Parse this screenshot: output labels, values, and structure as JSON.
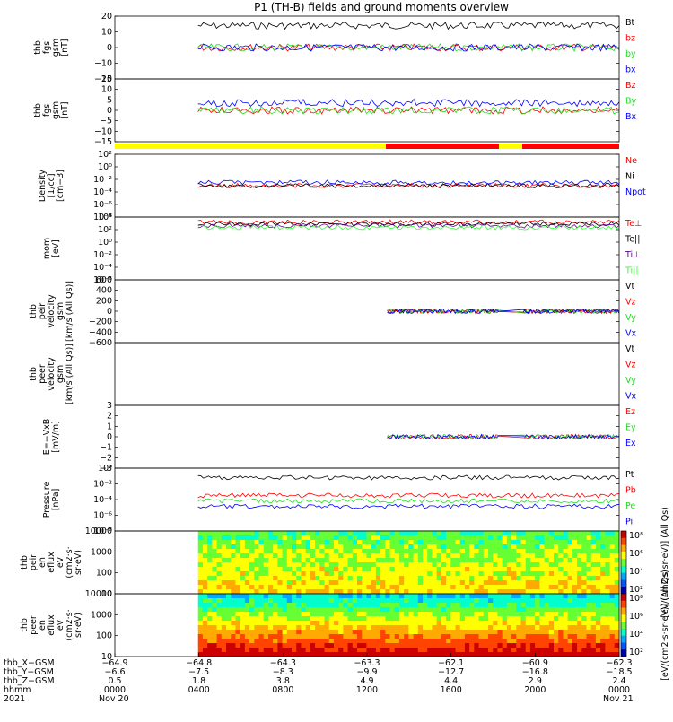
{
  "figure": {
    "title": "P1 (TH-B) fields and ground moments overview",
    "colors": {
      "black": "#000000",
      "red": "#ff0000",
      "green": "#22dd22",
      "blue": "#0000ff",
      "yellow": "#ffff00",
      "lightgreen": "#33ff33",
      "purple": "#660099"
    }
  },
  "chart_data": [
    {
      "id": "fgs-gsm",
      "type": "line",
      "ylabel": [
        "thb",
        "fgs",
        "gsm",
        "[nT]"
      ],
      "ylim": [
        -20,
        20
      ],
      "yticks": [
        "20",
        "10",
        "0",
        "−10",
        "−20"
      ],
      "legend": [
        {
          "label": "Bt",
          "color": "#000000"
        },
        {
          "label": "bz",
          "color": "#ff0000"
        },
        {
          "label": "by",
          "color": "#22dd22"
        },
        {
          "label": "bx",
          "color": "#0000ff"
        }
      ]
    },
    {
      "id": "fgs-dsl",
      "type": "line",
      "ylabel": [
        "thb",
        "fgs",
        "gsm",
        "[nT]"
      ],
      "ylim": [
        -15,
        15
      ],
      "yticks": [
        "15",
        "10",
        "5",
        "0",
        "−5",
        "−10",
        "−15"
      ],
      "legend": [
        {
          "label": "Bz",
          "color": "#ff0000"
        },
        {
          "label": "By",
          "color": "#22dd22"
        },
        {
          "label": "Bx",
          "color": "#0000ff"
        }
      ]
    },
    {
      "id": "density",
      "type": "line",
      "ylabel": [
        "Density",
        "[1/cc]",
        "[cm−3]"
      ],
      "scale": "log",
      "yticks": [
        "10²",
        "10⁰",
        "10⁻²",
        "10⁻⁴",
        "10⁻⁶",
        "10⁻⁸"
      ],
      "legend": [
        {
          "label": "Ne",
          "color": "#ff0000"
        },
        {
          "label": "Ni",
          "color": "#000000"
        },
        {
          "label": "Npot",
          "color": "#0000ff"
        }
      ]
    },
    {
      "id": "temperature",
      "type": "line",
      "ylabel": [
        "mom",
        "[eV]"
      ],
      "scale": "log",
      "yticks": [
        "10⁴",
        "10²",
        "10⁰",
        "10⁻²",
        "10⁻⁴",
        "10⁻⁶"
      ],
      "legend": [
        {
          "label": "Te⊥",
          "color": "#ff0000"
        },
        {
          "label": "Te||",
          "color": "#000000"
        },
        {
          "label": "Ti⊥",
          "color": "#660099"
        },
        {
          "label": "Ti||",
          "color": "#33ff33"
        }
      ]
    },
    {
      "id": "peir-velocity",
      "type": "line",
      "ylabel": [
        "thb",
        "peir",
        "velocity",
        "gsm",
        "[km/s (All Qs)]"
      ],
      "ylim": [
        -600,
        600
      ],
      "yticks": [
        "600",
        "400",
        "200",
        "0",
        "−200",
        "−400",
        "−600"
      ],
      "legend": [
        {
          "label": "Vt",
          "color": "#000000"
        },
        {
          "label": "Vz",
          "color": "#ff0000"
        },
        {
          "label": "Vy",
          "color": "#22dd22"
        },
        {
          "label": "Vx",
          "color": "#0000ff"
        }
      ]
    },
    {
      "id": "peer-velocity",
      "type": "line",
      "ylabel": [
        "thb",
        "peer",
        "velocity",
        "gsm",
        "[km/s (All Qs)]"
      ],
      "yticks": [],
      "legend": [
        {
          "label": "Vt",
          "color": "#000000"
        },
        {
          "label": "Vz",
          "color": "#ff0000"
        },
        {
          "label": "Vy",
          "color": "#22dd22"
        },
        {
          "label": "Vx",
          "color": "#0000ff"
        }
      ]
    },
    {
      "id": "efield",
      "type": "line",
      "ylabel": [
        "E=−VxB",
        "[mV/m]"
      ],
      "ylim": [
        -3,
        3
      ],
      "yticks": [
        "3",
        "2",
        "1",
        "0",
        "−1",
        "−2",
        "−3"
      ],
      "legend": [
        {
          "label": "Ez",
          "color": "#ff0000"
        },
        {
          "label": "Ey",
          "color": "#22dd22"
        },
        {
          "label": "Ex",
          "color": "#0000ff"
        }
      ]
    },
    {
      "id": "pressure",
      "type": "line",
      "ylabel": [
        "Pressure",
        "[nPa]"
      ],
      "scale": "log",
      "yticks": [
        "10⁰",
        "10⁻²",
        "10⁻⁴",
        "10⁻⁶",
        "10⁻⁸"
      ],
      "legend": [
        {
          "label": "Pt",
          "color": "#000000"
        },
        {
          "label": "Pb",
          "color": "#ff0000"
        },
        {
          "label": "Pe",
          "color": "#22dd22"
        },
        {
          "label": "Pi",
          "color": "#0000ff"
        }
      ]
    },
    {
      "id": "peir-spec",
      "type": "heatmap",
      "ylabel": [
        "thb",
        "peir",
        "en",
        "eflux",
        "eV",
        "(cm2·s·",
        "sr·eV)"
      ],
      "yticks": [
        "10000",
        "1000",
        "100",
        "10"
      ],
      "colorbar": {
        "label": "[eV/(cm2·s·sr·eV)] (All Qs)",
        "ticks": [
          "10⁸",
          "10⁶",
          "10⁴",
          "10²"
        ]
      }
    },
    {
      "id": "peer-spec",
      "type": "heatmap",
      "ylabel": [
        "thb",
        "peer",
        "en",
        "eflux",
        "eV",
        "(cm2·s·",
        "sr·eV)"
      ],
      "yticks": [
        "10000",
        "1000",
        "100",
        "10"
      ],
      "colorbar": {
        "label": "[eV/(cm2·s·sr·eV)] (All Qs)",
        "ticks": [
          "10⁸",
          "10⁶",
          "10⁴",
          "10²"
        ]
      }
    }
  ],
  "xaxis": {
    "row_labels": [
      "thb_X−GSM",
      "thb_Y−GSM",
      "thb_Z−GSM",
      "hhmm",
      "2021"
    ],
    "columns": [
      {
        "x": "−64.9",
        "y": "−6.6",
        "z": "0.5",
        "hhmm": "0000",
        "date": "Nov 20"
      },
      {
        "x": "−64.8",
        "y": "−7.5",
        "z": "1.8",
        "hhmm": "0400",
        "date": ""
      },
      {
        "x": "−64.3",
        "y": "−8.3",
        "z": "3.8",
        "hhmm": "0800",
        "date": ""
      },
      {
        "x": "−63.3",
        "y": "−9.9",
        "z": "4.9",
        "hhmm": "1200",
        "date": ""
      },
      {
        "x": "−62.1",
        "y": "−12.7",
        "z": "4.4",
        "hhmm": "1600",
        "date": ""
      },
      {
        "x": "−60.9",
        "y": "−16.8",
        "z": "2.9",
        "hhmm": "2000",
        "date": ""
      },
      {
        "x": "−62.3",
        "y": "−18.5",
        "z": "2.4",
        "hhmm": "0000",
        "date": "Nov 21"
      }
    ]
  }
}
